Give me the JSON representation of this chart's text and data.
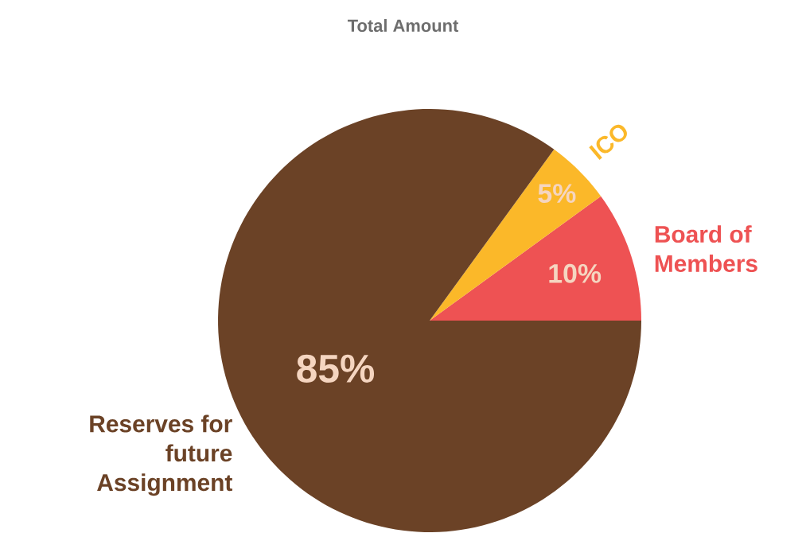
{
  "chart_data": {
    "type": "pie",
    "title": "Total Amount",
    "categories": [
      "Board of Members",
      "ICO",
      "Reserves for future Assignment"
    ],
    "values": [
      10,
      5,
      85
    ],
    "colors": [
      "#ee5253",
      "#fbb829",
      "#6b4226"
    ],
    "value_labels": [
      "10%",
      "5%",
      "85%"
    ]
  }
}
